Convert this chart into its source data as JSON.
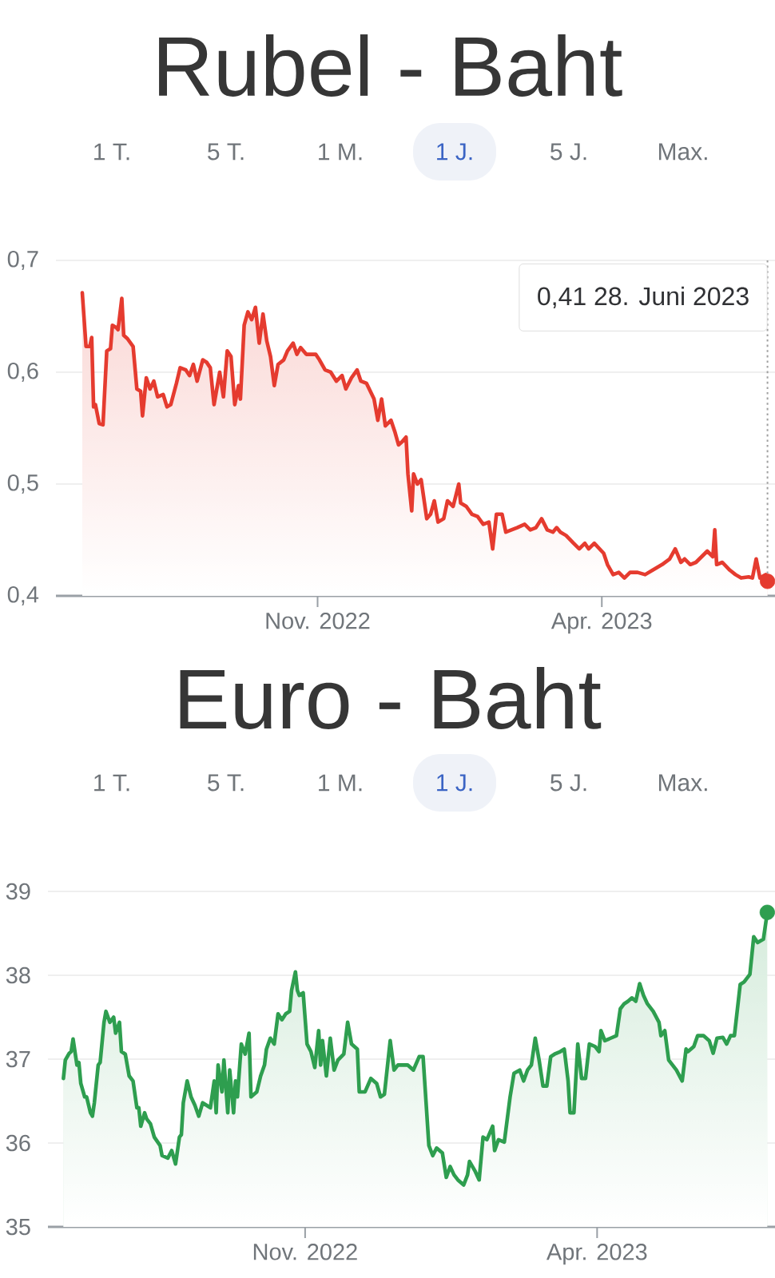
{
  "chart_data": [
    {
      "type": "area",
      "title": "Rubel - Baht",
      "annotations": [
        "1 T.",
        "5 T.",
        "1 M.",
        "1 J.",
        "5 J.",
        "Max.",
        {
          "text": "0,41 28. Juni 2023",
          "x": "2023-06-28",
          "y": 0.413
        }
      ],
      "series": [
        {
          "color": "#e53b2f",
          "x": [
            "2022-06-29",
            "2022-07-01",
            "2022-07-03",
            "2022-07-04",
            "2022-07-05",
            "2022-07-06",
            "2022-07-08",
            "2022-07-10",
            "2022-07-12",
            "2022-07-14",
            "2022-07-15",
            "2022-07-17",
            "2022-07-18",
            "2022-07-20",
            "2022-07-21",
            "2022-07-23",
            "2022-07-26",
            "2022-07-28",
            "2022-07-30",
            "2022-07-31",
            "2022-08-02",
            "2022-08-04",
            "2022-08-06",
            "2022-08-08",
            "2022-08-11",
            "2022-08-13",
            "2022-08-15",
            "2022-08-18",
            "2022-08-20",
            "2022-08-23",
            "2022-08-25",
            "2022-08-27",
            "2022-08-29",
            "2022-09-01",
            "2022-09-03",
            "2022-09-05",
            "2022-09-07",
            "2022-09-10",
            "2022-09-12",
            "2022-09-14",
            "2022-09-16",
            "2022-09-18",
            "2022-09-20",
            "2022-09-21",
            "2022-09-23",
            "2022-09-25",
            "2022-09-27",
            "2022-09-29",
            "2022-10-01",
            "2022-10-03",
            "2022-10-05",
            "2022-10-07",
            "2022-10-09",
            "2022-10-11",
            "2022-10-14",
            "2022-10-16",
            "2022-10-19",
            "2022-10-21",
            "2022-10-23",
            "2022-10-26",
            "2022-10-31",
            "2022-11-02",
            "2022-11-05",
            "2022-11-08",
            "2022-11-11",
            "2022-11-14",
            "2022-11-16",
            "2022-11-19",
            "2022-11-22",
            "2022-11-24",
            "2022-11-27",
            "2022-12-01",
            "2022-12-03",
            "2022-12-05",
            "2022-12-07",
            "2022-12-10",
            "2022-12-12",
            "2022-12-14",
            "2022-12-16",
            "2022-12-18",
            "2022-12-19",
            "2022-12-21",
            "2022-12-22",
            "2022-12-24",
            "2022-12-26",
            "2022-12-29",
            "2022-12-31",
            "2023-01-02",
            "2023-01-04",
            "2023-01-07",
            "2023-01-09",
            "2023-01-12",
            "2023-01-15",
            "2023-01-16",
            "2023-01-19",
            "2023-01-22",
            "2023-01-25",
            "2023-01-28",
            "2023-01-31",
            "2023-02-02",
            "2023-02-04",
            "2023-02-07",
            "2023-02-09",
            "2023-02-12",
            "2023-02-15",
            "2023-02-19",
            "2023-02-22",
            "2023-02-25",
            "2023-02-28",
            "2023-03-03",
            "2023-03-06",
            "2023-03-08",
            "2023-03-10",
            "2023-03-13",
            "2023-03-17",
            "2023-03-20",
            "2023-03-23",
            "2023-03-25",
            "2023-03-28",
            "2023-04-02",
            "2023-04-04",
            "2023-04-07",
            "2023-04-10",
            "2023-04-13",
            "2023-04-16",
            "2023-04-20",
            "2023-04-24",
            "2023-04-28",
            "2023-05-03",
            "2023-05-07",
            "2023-05-10",
            "2023-05-13",
            "2023-05-15",
            "2023-05-18",
            "2023-05-21",
            "2023-05-24",
            "2023-05-27",
            "2023-05-30",
            "2023-05-31",
            "2023-06-01",
            "2023-06-04",
            "2023-06-08",
            "2023-06-11",
            "2023-06-14",
            "2023-06-18",
            "2023-06-20",
            "2023-06-22",
            "2023-06-24",
            "2023-06-27",
            "2023-06-28"
          ],
          "values": [
            0.671,
            0.623,
            0.623,
            0.631,
            0.569,
            0.571,
            0.554,
            0.553,
            0.619,
            0.621,
            0.642,
            0.64,
            0.638,
            0.666,
            0.633,
            0.63,
            0.623,
            0.585,
            0.583,
            0.561,
            0.595,
            0.585,
            0.592,
            0.578,
            0.58,
            0.569,
            0.571,
            0.59,
            0.604,
            0.602,
            0.597,
            0.607,
            0.592,
            0.611,
            0.609,
            0.604,
            0.571,
            0.6,
            0.578,
            0.619,
            0.614,
            0.571,
            0.588,
            0.576,
            0.642,
            0.654,
            0.647,
            0.658,
            0.626,
            0.652,
            0.628,
            0.614,
            0.588,
            0.607,
            0.611,
            0.619,
            0.626,
            0.616,
            0.622,
            0.616,
            0.616,
            0.611,
            0.602,
            0.6,
            0.592,
            0.597,
            0.585,
            0.595,
            0.602,
            0.592,
            0.59,
            0.576,
            0.557,
            0.576,
            0.552,
            0.557,
            0.547,
            0.535,
            0.538,
            0.542,
            0.509,
            0.476,
            0.509,
            0.5,
            0.504,
            0.469,
            0.473,
            0.485,
            0.466,
            0.469,
            0.485,
            0.48,
            0.5,
            0.483,
            0.48,
            0.473,
            0.471,
            0.464,
            0.466,
            0.442,
            0.473,
            0.473,
            0.457,
            0.459,
            0.461,
            0.464,
            0.459,
            0.461,
            0.469,
            0.459,
            0.457,
            0.461,
            0.457,
            0.454,
            0.447,
            0.442,
            0.447,
            0.442,
            0.447,
            0.438,
            0.428,
            0.419,
            0.421,
            0.416,
            0.421,
            0.421,
            0.419,
            0.423,
            0.428,
            0.433,
            0.442,
            0.43,
            0.433,
            0.428,
            0.43,
            0.435,
            0.44,
            0.435,
            0.459,
            0.428,
            0.43,
            0.423,
            0.419,
            0.416,
            0.417,
            0.416,
            0.433,
            0.416,
            0.419,
            0.413
          ]
        },
        {
          "type": "scatter",
          "marker": "circle",
          "color": "#e53b2f",
          "x": [
            "2023-06-28"
          ],
          "values": [
            0.413
          ]
        }
      ],
      "xlim": [
        "2022-06-15",
        "2023-07-02"
      ],
      "ylim": [
        0.4,
        0.7
      ],
      "xticks": [
        {
          "value": "2022-11-01",
          "label": "Nov. 2022"
        },
        {
          "value": "2023-04-01",
          "label": "Apr. 2023"
        }
      ],
      "yticks": [
        {
          "value": 0.4,
          "label": "0,4"
        },
        {
          "value": 0.5,
          "label": "0,5"
        },
        {
          "value": 0.6,
          "label": "0,6"
        },
        {
          "value": 0.7,
          "label": "0,7"
        }
      ],
      "grid": "y"
    },
    {
      "type": "area",
      "title": "Euro - Baht",
      "annotations": [
        "1 T.",
        "5 T.",
        "1 M.",
        "1 J.",
        "5 J.",
        "Max."
      ],
      "series": [
        {
          "color": "#2e9e4f",
          "x": [
            "2022-06-29",
            "2022-06-30",
            "2022-07-02",
            "2022-07-03",
            "2022-07-04",
            "2022-07-06",
            "2022-07-07",
            "2022-07-08",
            "2022-07-10",
            "2022-07-11",
            "2022-07-13",
            "2022-07-14",
            "2022-07-15",
            "2022-07-17",
            "2022-07-18",
            "2022-07-20",
            "2022-07-21",
            "2022-07-23",
            "2022-07-25",
            "2022-07-26",
            "2022-07-28",
            "2022-07-29",
            "2022-07-31",
            "2022-08-02",
            "2022-08-04",
            "2022-08-06",
            "2022-08-07",
            "2022-08-08",
            "2022-08-10",
            "2022-08-11",
            "2022-08-13",
            "2022-08-15",
            "2022-08-18",
            "2022-08-19",
            "2022-08-22",
            "2022-08-24",
            "2022-08-26",
            "2022-08-28",
            "2022-08-29",
            "2022-08-30",
            "2022-09-01",
            "2022-09-03",
            "2022-09-05",
            "2022-09-07",
            "2022-09-09",
            "2022-09-11",
            "2022-09-13",
            "2022-09-15",
            "2022-09-16",
            "2022-09-17",
            "2022-09-19",
            "2022-09-20",
            "2022-09-22",
            "2022-09-23",
            "2022-09-25",
            "2022-09-26",
            "2022-09-27",
            "2022-09-29",
            "2022-10-01",
            "2022-10-03",
            "2022-10-04",
            "2022-10-07",
            "2022-10-09",
            "2022-10-11",
            "2022-10-12",
            "2022-10-14",
            "2022-10-16",
            "2022-10-18",
            "2022-10-20",
            "2022-10-22",
            "2022-10-24",
            "2022-10-25",
            "2022-10-27",
            "2022-10-28",
            "2022-10-29",
            "2022-10-31",
            "2022-11-02",
            "2022-11-04",
            "2022-11-06",
            "2022-11-08",
            "2022-11-09",
            "2022-11-10",
            "2022-11-12",
            "2022-11-14",
            "2022-11-16",
            "2022-11-18",
            "2022-11-21",
            "2022-11-23",
            "2022-11-25",
            "2022-11-28",
            "2022-11-29",
            "2022-12-02",
            "2022-12-05",
            "2022-12-08",
            "2022-12-10",
            "2022-12-12",
            "2022-12-15",
            "2022-12-17",
            "2022-12-19",
            "2022-12-21",
            "2022-12-24",
            "2022-12-27",
            "2022-12-30",
            "2023-01-01",
            "2023-01-04",
            "2023-01-06",
            "2023-01-08",
            "2023-01-11",
            "2023-01-13",
            "2023-01-15",
            "2023-01-17",
            "2023-01-19",
            "2023-01-22",
            "2023-01-24",
            "2023-01-25",
            "2023-01-28",
            "2023-01-30",
            "2023-02-01",
            "2023-02-03",
            "2023-02-06",
            "2023-02-07",
            "2023-02-09",
            "2023-02-12",
            "2023-02-15",
            "2023-02-17",
            "2023-02-20",
            "2023-02-22",
            "2023-02-24",
            "2023-02-26",
            "2023-02-28",
            "2023-03-02",
            "2023-03-04",
            "2023-03-06",
            "2023-03-08",
            "2023-03-10",
            "2023-03-13",
            "2023-03-15",
            "2023-03-17",
            "2023-03-18",
            "2023-03-20",
            "2023-03-22",
            "2023-03-24",
            "2023-03-26",
            "2023-03-28",
            "2023-03-31",
            "2023-04-02",
            "2023-04-03",
            "2023-04-05",
            "2023-04-08",
            "2023-04-11",
            "2023-04-13",
            "2023-04-15",
            "2023-04-17",
            "2023-04-19",
            "2023-04-21",
            "2023-04-23",
            "2023-04-25",
            "2023-04-27",
            "2023-04-30",
            "2023-05-03",
            "2023-05-04",
            "2023-05-06",
            "2023-05-08",
            "2023-05-10",
            "2023-05-12",
            "2023-05-15",
            "2023-05-17",
            "2023-05-18",
            "2023-05-21",
            "2023-05-23",
            "2023-05-26",
            "2023-05-29",
            "2023-05-31",
            "2023-06-02",
            "2023-06-05",
            "2023-06-07",
            "2023-06-09",
            "2023-06-11",
            "2023-06-14",
            "2023-06-16",
            "2023-06-19",
            "2023-06-21",
            "2023-06-23",
            "2023-06-26",
            "2023-06-28"
          ],
          "values": [
            36.77,
            36.99,
            37.07,
            37.09,
            37.24,
            36.93,
            36.96,
            36.71,
            36.55,
            36.55,
            36.36,
            36.32,
            36.48,
            36.93,
            36.96,
            37.44,
            37.57,
            37.44,
            37.5,
            37.31,
            37.44,
            37.09,
            37.06,
            36.8,
            36.74,
            36.42,
            36.42,
            36.2,
            36.36,
            36.29,
            36.23,
            36.07,
            35.97,
            35.85,
            35.82,
            35.91,
            35.75,
            36.07,
            36.1,
            36.48,
            36.74,
            36.55,
            36.45,
            36.32,
            36.48,
            36.45,
            36.42,
            36.74,
            36.36,
            36.93,
            36.61,
            36.99,
            36.36,
            36.87,
            36.36,
            36.74,
            36.55,
            37.18,
            37.06,
            37.31,
            36.55,
            36.61,
            36.8,
            36.93,
            37.12,
            37.25,
            37.18,
            37.54,
            37.47,
            37.54,
            37.57,
            37.82,
            38.04,
            37.82,
            37.76,
            37.79,
            37.18,
            37.09,
            36.9,
            37.34,
            36.93,
            37.22,
            36.8,
            37.25,
            36.87,
            36.99,
            37.06,
            37.44,
            37.18,
            37.12,
            36.61,
            36.61,
            36.77,
            36.71,
            36.55,
            36.58,
            37.22,
            36.87,
            36.93,
            36.93,
            36.93,
            36.87,
            37.03,
            37.03,
            35.97,
            35.85,
            35.94,
            35.88,
            35.59,
            35.72,
            35.62,
            35.56,
            35.5,
            35.62,
            35.78,
            35.66,
            35.56,
            36.07,
            36.04,
            36.2,
            35.91,
            36.04,
            36.01,
            36.55,
            36.83,
            36.87,
            36.74,
            36.87,
            36.93,
            37.25,
            36.99,
            36.68,
            36.68,
            37.03,
            37.06,
            37.09,
            37.12,
            36.74,
            36.36,
            36.36,
            37.18,
            36.77,
            36.77,
            37.18,
            37.15,
            37.09,
            37.34,
            37.22,
            37.25,
            37.28,
            37.6,
            37.66,
            37.69,
            37.73,
            37.69,
            37.9,
            37.76,
            37.66,
            37.57,
            37.44,
            37.28,
            37.34,
            36.99,
            36.93,
            36.87,
            36.74,
            37.12,
            37.09,
            37.15,
            37.28,
            37.28,
            37.22,
            37.07,
            37.25,
            37.26,
            37.18,
            37.28,
            37.28,
            37.89,
            37.92,
            38.01,
            38.46,
            38.39,
            38.43,
            38.75
          ]
        },
        {
          "type": "scatter",
          "marker": "circle",
          "color": "#2e9e4f",
          "x": [
            "2023-06-28"
          ],
          "values": [
            38.75
          ]
        }
      ],
      "xlim": [
        "2022-06-21",
        "2023-07-02"
      ],
      "ylim": [
        35,
        39
      ],
      "xticks": [
        {
          "value": "2022-11-01",
          "label": "Nov. 2022"
        },
        {
          "value": "2023-04-01",
          "label": "Apr. 2023"
        }
      ],
      "yticks": [
        35,
        36,
        37,
        38,
        39
      ],
      "grid": "y"
    }
  ]
}
